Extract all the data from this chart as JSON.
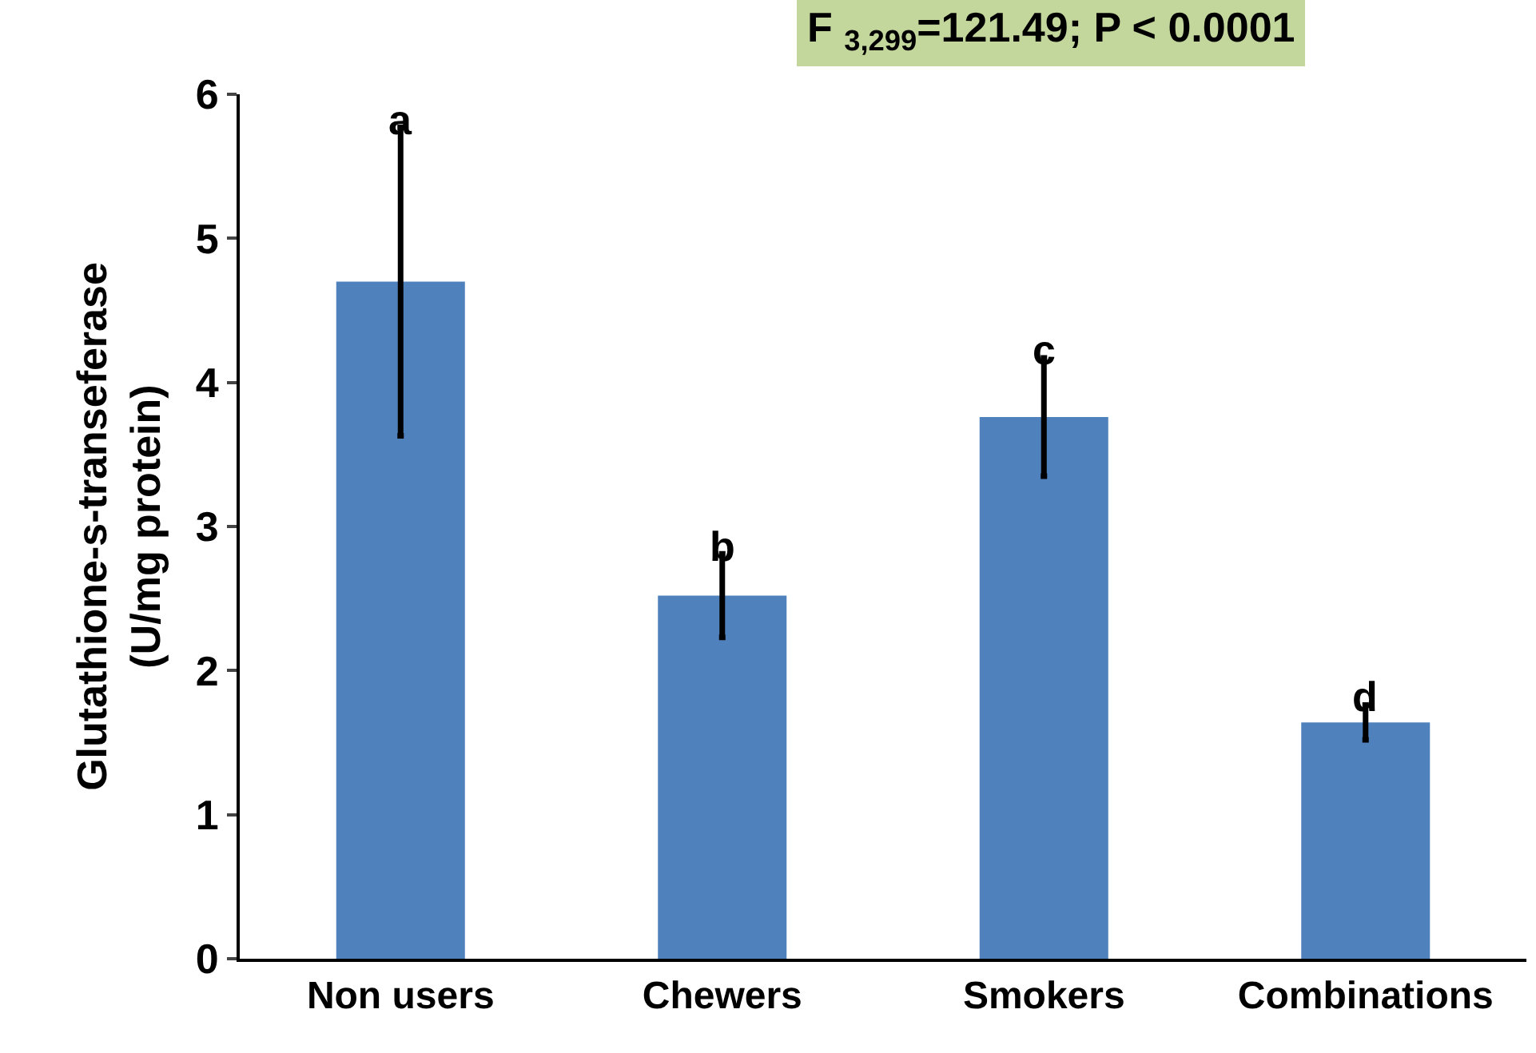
{
  "chart_data": {
    "type": "bar",
    "ylabel": "Glutathione-s-transeferase\n(U/mg protein)",
    "categories": [
      "Non users",
      "Chewers",
      "Smokers",
      "Combinations"
    ],
    "values": [
      4.7,
      2.52,
      3.76,
      1.64
    ],
    "errors": [
      1.07,
      0.29,
      0.41,
      0.12
    ],
    "color": "#4f81bd",
    "ylim": [
      0,
      6
    ],
    "yticks": [
      0,
      1,
      2,
      3,
      4,
      5,
      6
    ],
    "grid": false,
    "annotations": [
      "F $_{3,299}$=121.49; P < 0.0001",
      {
        "text": "a",
        "x": "Non users",
        "y": 5.77
      },
      {
        "text": "b",
        "x": "Chewers",
        "y": 2.81
      },
      {
        "text": "c",
        "x": "Smokers",
        "y": 4.17
      },
      {
        "text": "d",
        "x": "Combinations",
        "y": 1.76
      }
    ]
  }
}
